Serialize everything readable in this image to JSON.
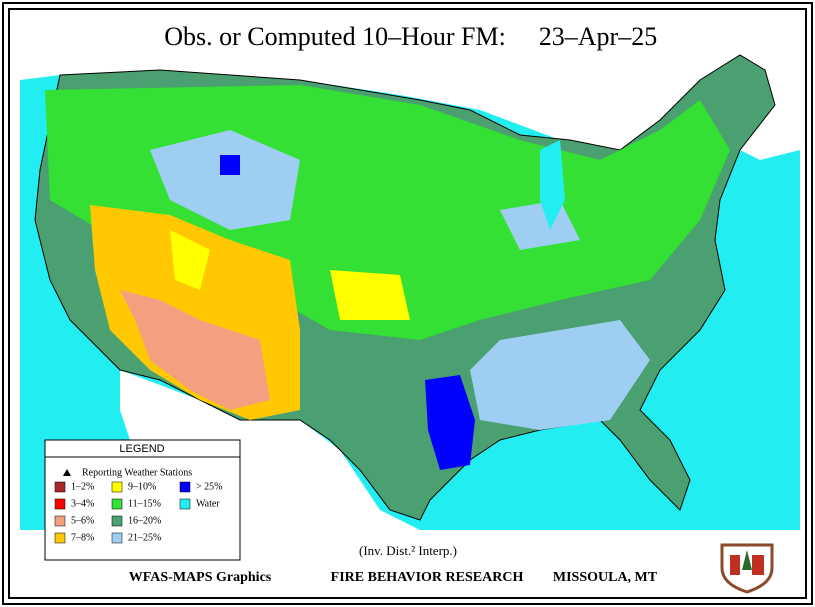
{
  "title": "Obs. or Computed 10–Hour FM:",
  "date": "23–Apr–25",
  "legend": {
    "title": "LEGEND",
    "stations": "Reporting Weather Stations",
    "items": [
      {
        "label": "1–2%",
        "color": "#a52828"
      },
      {
        "label": "3–4%",
        "color": "#ff0000"
      },
      {
        "label": "5–6%",
        "color": "#f4a080"
      },
      {
        "label": "7–8%",
        "color": "#ffc800"
      },
      {
        "label": "9–10%",
        "color": "#ffff00"
      },
      {
        "label": "11–15%",
        "color": "#33e033"
      },
      {
        "label": "16–20%",
        "color": "#4aa070"
      },
      {
        "label": "21–25%",
        "color": "#9ecff2"
      },
      {
        "label": "> 25%",
        "color": "#0000ff"
      },
      {
        "label": "Water",
        "color": "#22eef2"
      }
    ]
  },
  "footer": {
    "interp": "(Inv. Dist.² Interp.)",
    "credits": [
      "WFAS-MAPS Graphics",
      "FIRE BEHAVIOR RESEARCH",
      "MISSOULA, MT"
    ]
  }
}
